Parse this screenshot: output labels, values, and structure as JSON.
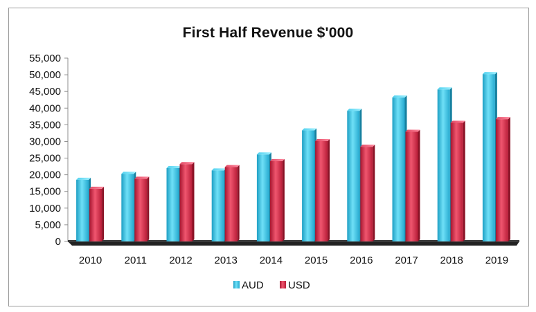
{
  "chart_data": {
    "type": "bar",
    "title": "First Half Revenue $'000",
    "xlabel": "",
    "ylabel": "",
    "categories": [
      "2010",
      "2011",
      "2012",
      "2013",
      "2014",
      "2015",
      "2016",
      "2017",
      "2018",
      "2019"
    ],
    "series": [
      {
        "name": "AUD",
        "color": "#3cc5e6",
        "values": [
          18500,
          20300,
          22000,
          21300,
          26100,
          33300,
          39200,
          43200,
          45600,
          50200
        ]
      },
      {
        "name": "USD",
        "color": "#d8304c",
        "values": [
          15800,
          18800,
          23200,
          22300,
          24100,
          30100,
          28400,
          32900,
          35600,
          36700
        ]
      }
    ],
    "ylim": [
      0,
      55000
    ],
    "yticks": [
      "0",
      "5,000",
      "10,000",
      "15,000",
      "20,000",
      "25,000",
      "30,000",
      "35,000",
      "40,000",
      "45,000",
      "50,000",
      "55,000"
    ],
    "ytick_values": [
      0,
      5000,
      10000,
      15000,
      20000,
      25000,
      30000,
      35000,
      40000,
      45000,
      50000,
      55000
    ],
    "grid": false,
    "legend_position": "bottom"
  }
}
